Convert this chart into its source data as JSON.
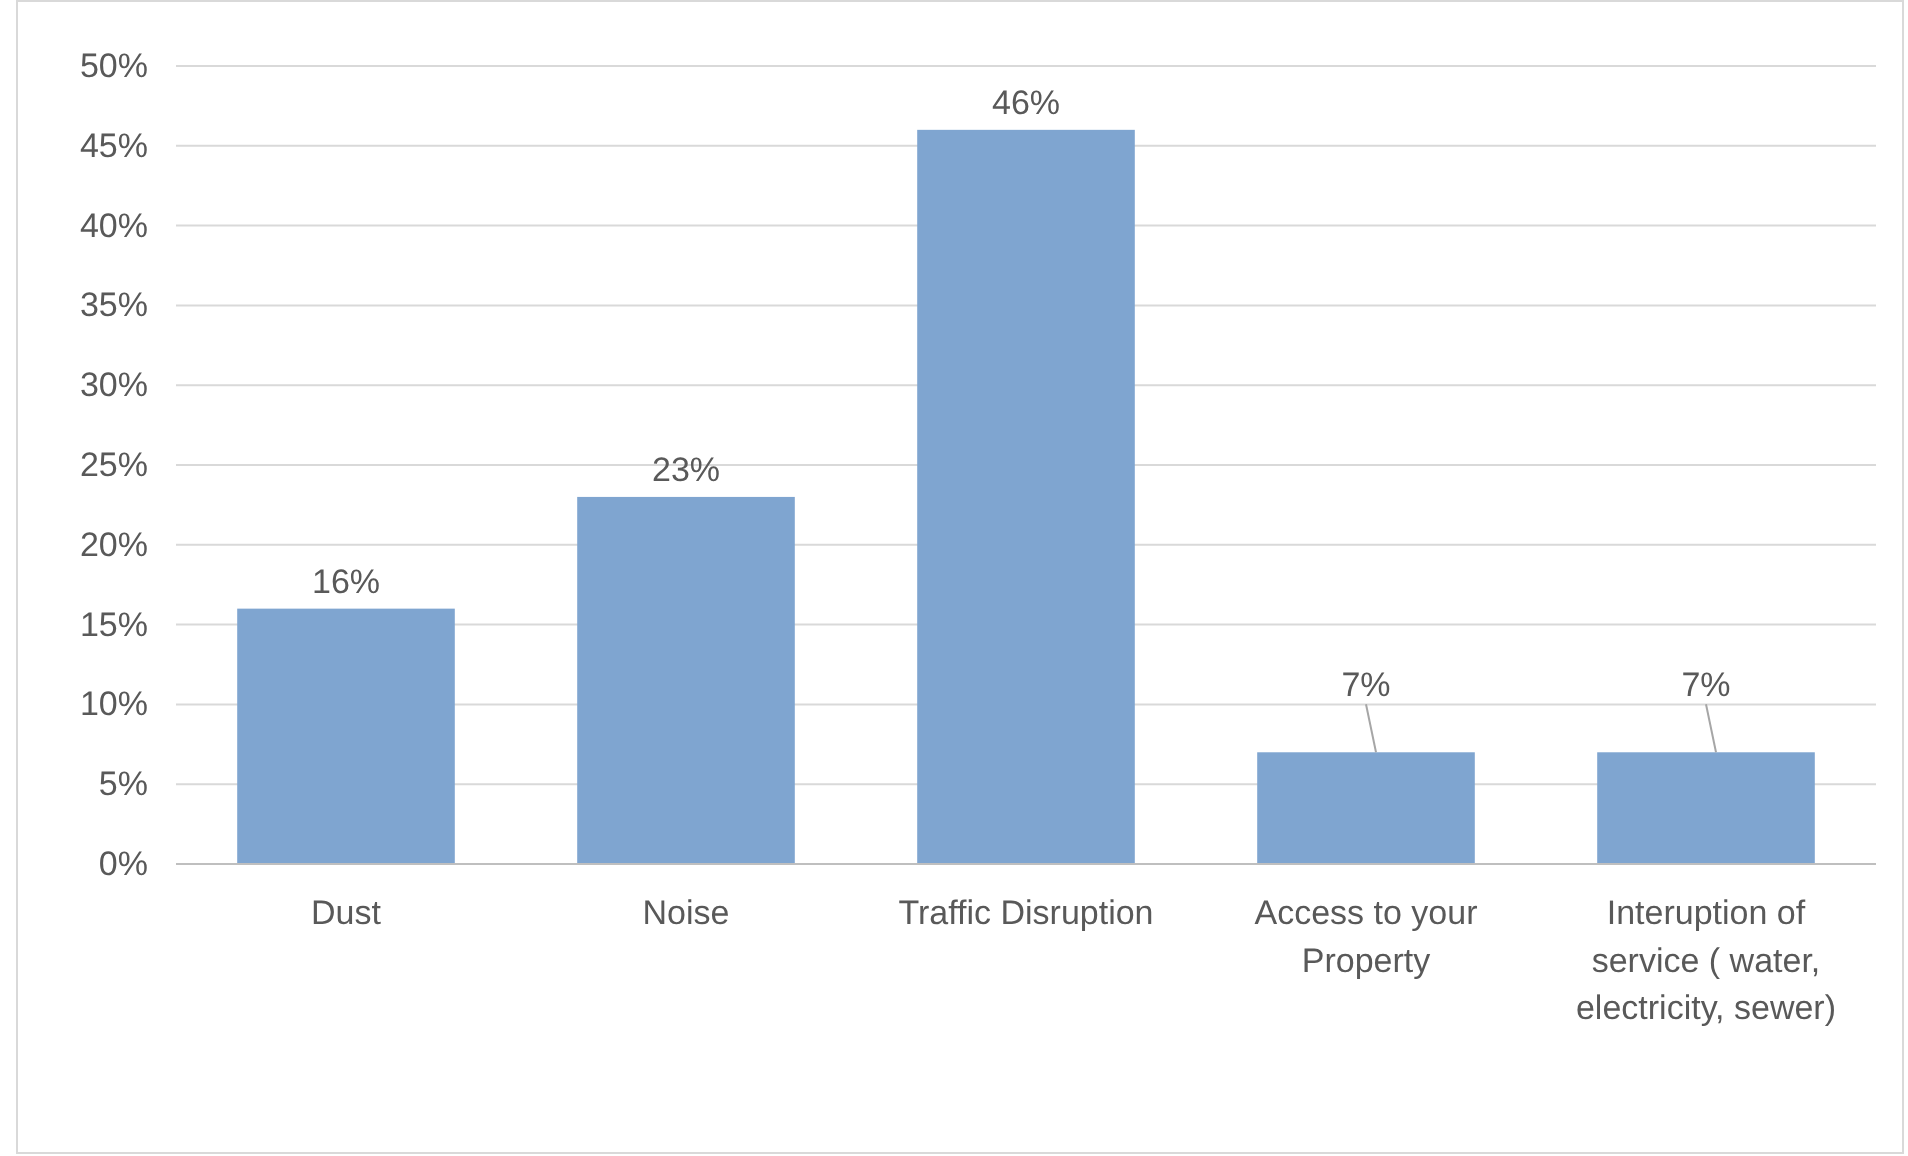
{
  "chart_data": {
    "type": "bar",
    "categories": [
      "Dust",
      "Noise",
      "Traffic Disruption",
      "Access to your Property",
      "Interuption of service ( water, electricity, sewer)"
    ],
    "values": [
      16,
      23,
      46,
      7,
      7
    ],
    "value_labels": [
      "16%",
      "23%",
      "46%",
      "7%",
      "7%"
    ],
    "color": "#7fa5d0",
    "ylim": [
      0,
      50
    ],
    "yticks": [
      {
        "value": 0,
        "label": "0%"
      },
      {
        "value": 5,
        "label": "5%"
      },
      {
        "value": 10,
        "label": "10%"
      },
      {
        "value": 15,
        "label": "15%"
      },
      {
        "value": 20,
        "label": "20%"
      },
      {
        "value": 25,
        "label": "25%"
      },
      {
        "value": 30,
        "label": "30%"
      },
      {
        "value": 35,
        "label": "35%"
      },
      {
        "value": 40,
        "label": "40%"
      },
      {
        "value": 45,
        "label": "45%"
      },
      {
        "value": 50,
        "label": "50%"
      }
    ],
    "grid": "y"
  }
}
